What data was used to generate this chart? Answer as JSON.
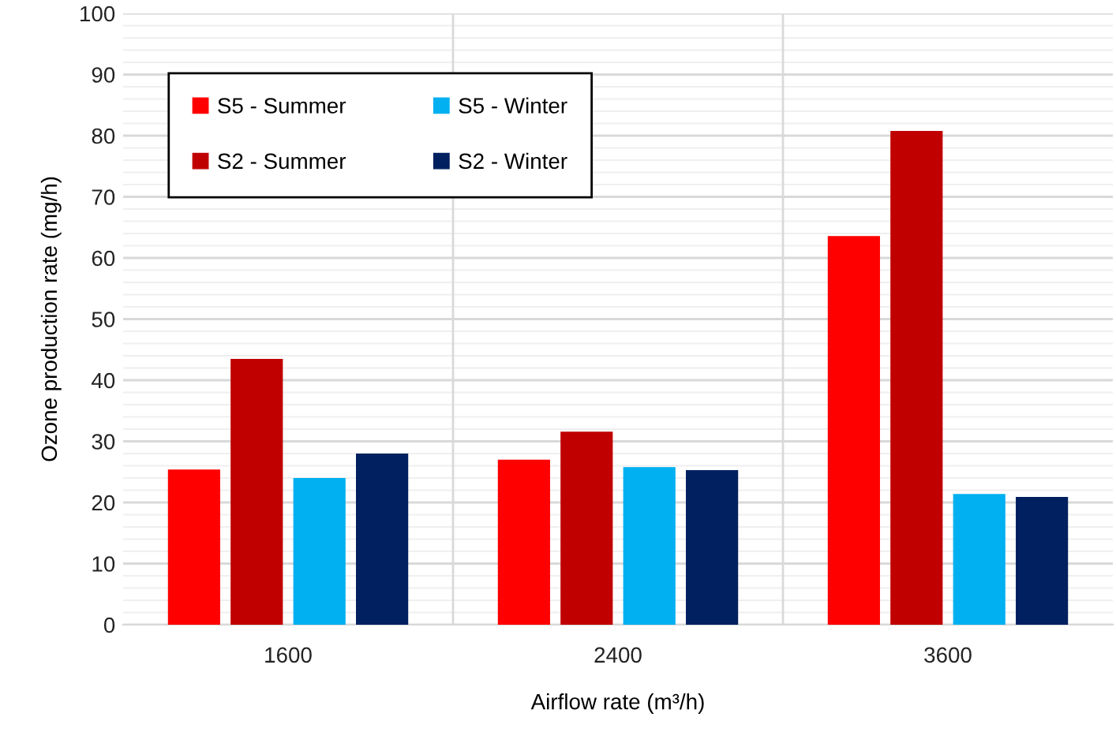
{
  "chart_data": {
    "type": "bar",
    "xlabel": "Airflow rate (m³/h)",
    "ylabel": "Ozone production rate (mg/h)",
    "categories": [
      "1600",
      "2400",
      "3600"
    ],
    "series": [
      {
        "name": "S5 - Summer",
        "color": "#ff0000",
        "values": [
          25.3,
          26.9,
          63.5
        ]
      },
      {
        "name": "S2 - Summer",
        "color": "#c00000",
        "values": [
          43.4,
          31.5,
          80.7
        ]
      },
      {
        "name": "S5 - Winter",
        "color": "#00b0f0",
        "values": [
          23.9,
          25.7,
          21.3
        ]
      },
      {
        "name": "S2 - Winter",
        "color": "#002060",
        "values": [
          27.9,
          25.2,
          20.8
        ]
      }
    ],
    "ylim": [
      0,
      100
    ],
    "yticks": [
      0,
      10,
      20,
      30,
      40,
      50,
      60,
      70,
      80,
      90,
      100
    ],
    "grid": true,
    "legend": "top left"
  }
}
